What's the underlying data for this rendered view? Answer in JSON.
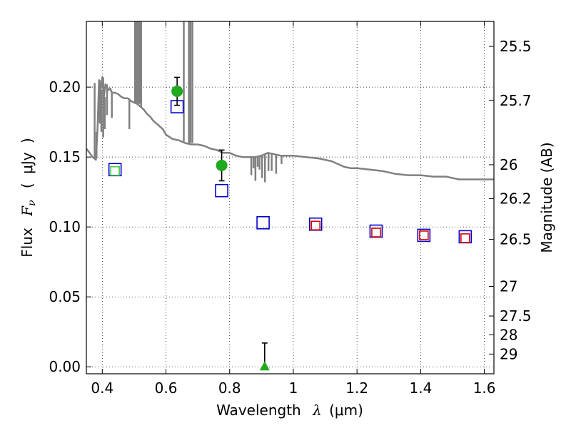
{
  "chart_data": {
    "type": "scatter",
    "title": "",
    "xlabel": {
      "text": "Wavelength",
      "symbol": "λ",
      "unit": "(μm)"
    },
    "ylabel": {
      "text": "Flux",
      "symbol": "F",
      "subscript": "ν",
      "unit_open": "(",
      "unit": "μJy",
      "unit_close": ")"
    },
    "y2label": "Magnitude (AB)",
    "xlim": [
      0.35,
      1.63
    ],
    "ylim": [
      -0.005,
      0.247
    ],
    "grid": true,
    "grid_style": "dotted",
    "x_ticks": [
      0.4,
      0.6,
      0.8,
      1.0,
      1.2,
      1.4,
      1.6
    ],
    "x_tick_labels": [
      "0.4",
      "0.6",
      "0.8",
      "1",
      "1.2",
      "1.4",
      "1.6"
    ],
    "y_ticks": [
      0.0,
      0.05,
      0.1,
      0.15,
      0.2
    ],
    "y_tick_labels": [
      "0.00",
      "0.05",
      "0.10",
      "0.15",
      "0.20"
    ],
    "y2_ticks": [
      {
        "label": "25.5",
        "flux": 0.2291
      },
      {
        "label": "25.7",
        "flux": 0.1905
      },
      {
        "label": "26",
        "flux": 0.1445
      },
      {
        "label": "26.2",
        "flux": 0.1202
      },
      {
        "label": "26.5",
        "flux": 0.0912
      },
      {
        "label": "27",
        "flux": 0.0575
      },
      {
        "label": "27.5",
        "flux": 0.0363
      },
      {
        "label": "28",
        "flux": 0.0229
      },
      {
        "label": "29",
        "flux": 0.0091
      }
    ],
    "colors": {
      "template": "#808080",
      "model_blue": "#0000cc",
      "model_red": "#dd0000",
      "model_green": "#44cc44",
      "detection": "#1faa1f",
      "errorbar": "#000000"
    },
    "series": [
      {
        "style": "template-line",
        "x": [
          0.35,
          0.36,
          0.37,
          0.38,
          0.385,
          0.39,
          0.395,
          0.4,
          0.405,
          0.41,
          0.415,
          0.42,
          0.425,
          0.43,
          0.435,
          0.44,
          0.45,
          0.46,
          0.47,
          0.48,
          0.49,
          0.5,
          0.51,
          0.52,
          0.53,
          0.54,
          0.55,
          0.56,
          0.57,
          0.58,
          0.59,
          0.6,
          0.62,
          0.64,
          0.66,
          0.68,
          0.7,
          0.72,
          0.74,
          0.76,
          0.78,
          0.8,
          0.82,
          0.84,
          0.86,
          0.88,
          0.9,
          0.92,
          0.94,
          0.96,
          0.98,
          1.0,
          1.04,
          1.08,
          1.12,
          1.16,
          1.18,
          1.2,
          1.24,
          1.28,
          1.32,
          1.36,
          1.4,
          1.44,
          1.48,
          1.52,
          1.56,
          1.6,
          1.63
        ],
        "y": [
          0.156,
          0.153,
          0.15,
          0.148,
          0.17,
          0.205,
          0.198,
          0.207,
          0.193,
          0.202,
          0.2,
          0.198,
          0.199,
          0.196,
          0.196,
          0.196,
          0.195,
          0.193,
          0.192,
          0.192,
          0.19,
          0.189,
          0.188,
          0.186,
          0.184,
          0.181,
          0.179,
          0.176,
          0.174,
          0.172,
          0.17,
          0.166,
          0.163,
          0.162,
          0.16,
          0.159,
          0.159,
          0.158,
          0.156,
          0.155,
          0.153,
          0.153,
          0.151,
          0.15,
          0.15,
          0.15,
          0.151,
          0.153,
          0.152,
          0.151,
          0.151,
          0.151,
          0.15,
          0.149,
          0.147,
          0.143,
          0.142,
          0.142,
          0.141,
          0.14,
          0.138,
          0.137,
          0.137,
          0.136,
          0.136,
          0.134,
          0.134,
          0.134,
          0.134
        ]
      },
      {
        "style": "template-spikes",
        "x": [
          0.376,
          0.382,
          0.392,
          0.397,
          0.403,
          0.408,
          0.415,
          0.43,
          0.485,
          0.503,
          0.507,
          0.512,
          0.517,
          0.522,
          0.656,
          0.672,
          0.677,
          0.683,
          0.868,
          0.875,
          0.881,
          0.888,
          0.894,
          0.902,
          0.911,
          0.922,
          0.932,
          0.946,
          0.963
        ],
        "y_base": [
          0.149,
          0.149,
          0.205,
          0.198,
          0.207,
          0.193,
          0.202,
          0.196,
          0.192,
          0.189,
          0.189,
          0.188,
          0.188,
          0.186,
          0.161,
          0.16,
          0.16,
          0.16,
          0.15,
          0.15,
          0.15,
          0.15,
          0.15,
          0.151,
          0.152,
          0.153,
          0.153,
          0.152,
          0.151
        ],
        "y_tip": [
          0.203,
          0.168,
          0.174,
          0.168,
          0.164,
          0.17,
          0.18,
          0.178,
          0.17,
          0.247,
          0.247,
          0.247,
          0.247,
          0.247,
          0.247,
          0.247,
          0.247,
          0.247,
          0.137,
          0.142,
          0.133,
          0.143,
          0.141,
          0.135,
          0.132,
          0.14,
          0.14,
          0.138,
          0.145
        ]
      },
      {
        "style": "model-square-blue",
        "x": [
          0.44,
          0.635,
          0.775,
          0.905,
          1.07,
          1.26,
          1.41,
          1.54
        ],
        "y": [
          0.141,
          0.186,
          0.126,
          0.103,
          0.102,
          0.097,
          0.094,
          0.093
        ]
      },
      {
        "style": "model-square-red",
        "x": [
          1.07,
          1.26,
          1.41,
          1.54
        ],
        "y": [
          0.101,
          0.096,
          0.094,
          0.092
        ]
      },
      {
        "style": "model-square-green",
        "x": [
          0.44
        ],
        "y": [
          0.14
        ]
      },
      {
        "style": "detection-circle",
        "x": [
          0.635,
          0.775
        ],
        "y": [
          0.197,
          0.144
        ],
        "err": [
          0.01,
          0.011
        ]
      },
      {
        "style": "upper-limit-triangle",
        "x": [
          0.91
        ],
        "y": [
          0.0
        ],
        "err_up": [
          0.017
        ]
      }
    ]
  }
}
